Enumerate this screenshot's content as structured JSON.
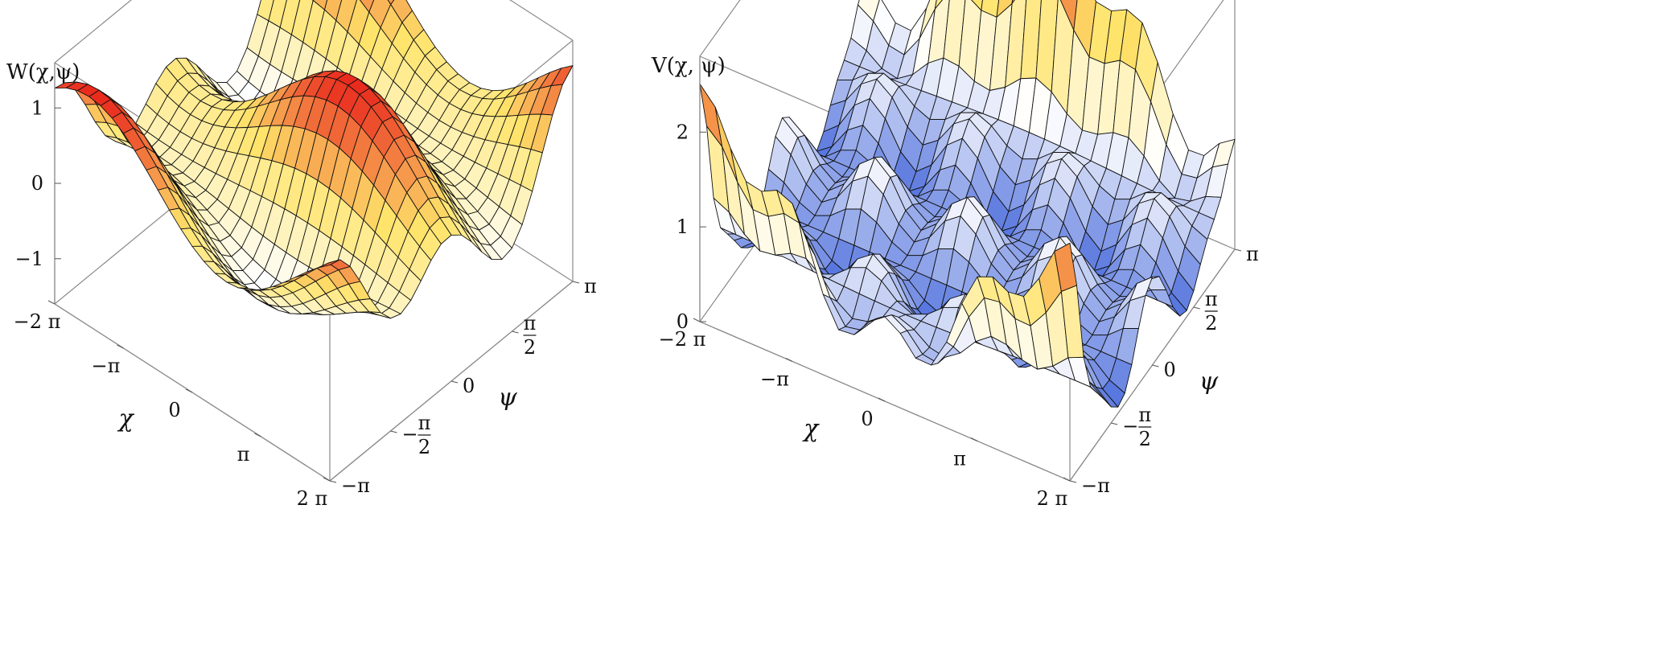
{
  "chart_data": [
    {
      "type": "surface3d",
      "function_label": "W(χ,ψ)",
      "z_label": "W(χ,ψ)",
      "x_label": "χ",
      "y_label": "ψ",
      "x_range": [
        -6.2832,
        6.2832
      ],
      "y_range": [
        -3.1416,
        3.1416
      ],
      "z_range": [
        -1.6,
        1.6
      ],
      "x_ticks": [
        "−2 π",
        "−π",
        "0",
        "π",
        "2 π"
      ],
      "x_tick_values": [
        -6.2832,
        -3.1416,
        0,
        3.1416,
        6.2832
      ],
      "y_ticks": [
        {
          "text": "−π"
        },
        {
          "num": "π",
          "den": "2",
          "sign": "−"
        },
        {
          "text": "0"
        },
        {
          "num": "π",
          "den": "2",
          "sign": ""
        },
        {
          "text": "π"
        }
      ],
      "y_tick_values": [
        -3.1416,
        -1.5708,
        0,
        1.5708,
        3.1416
      ],
      "z_ticks": [
        "1",
        "0",
        "−1"
      ],
      "z_tick_values": [
        1,
        0,
        -1
      ],
      "description_of_surface": "smooth periodic wave surface, two crests along ψ, peaks near z=1.5",
      "colormap": [
        "#3a5fd9",
        "#ffffff",
        "#ffe46b",
        "#e8261c"
      ],
      "mesh_lines": 24
    },
    {
      "type": "surface3d",
      "function_label": "V(χ, ψ)",
      "z_label": "V(χ, ψ)",
      "x_label": "χ",
      "y_label": "ψ",
      "x_range": [
        -6.2832,
        6.2832
      ],
      "y_range": [
        -3.1416,
        3.1416
      ],
      "z_range": [
        0,
        2.8
      ],
      "x_ticks": [
        "−2 π",
        "−π",
        "0",
        "π",
        "2 π"
      ],
      "x_tick_values": [
        -6.2832,
        -3.1416,
        0,
        3.1416,
        6.2832
      ],
      "y_ticks": [
        {
          "text": "−π"
        },
        {
          "num": "π",
          "den": "2",
          "sign": "−"
        },
        {
          "text": "0"
        },
        {
          "num": "π",
          "den": "2",
          "sign": ""
        },
        {
          "text": "π"
        }
      ],
      "y_tick_values": [
        -3.1416,
        -1.5708,
        0,
        1.5708,
        3.1416
      ],
      "z_ticks": [
        "2",
        "1",
        "0"
      ],
      "z_tick_values": [
        2,
        1,
        0
      ],
      "description_of_surface": "rippled potential surface with sharp ridges at ψ edges, peaks near z=2.7",
      "colormap": [
        "#3a5fd9",
        "#ffffff",
        "#ffe46b",
        "#e8261c"
      ],
      "mesh_lines": 24
    }
  ]
}
